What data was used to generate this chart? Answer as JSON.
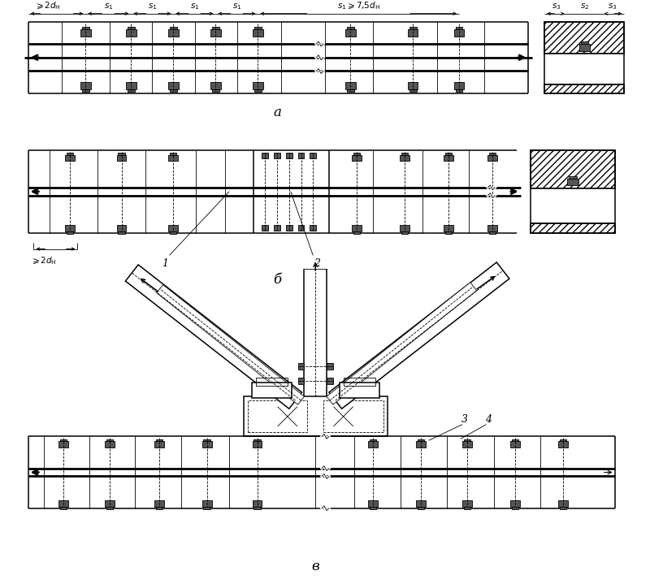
{
  "bg_color": "#ffffff",
  "line_color": "#000000",
  "label_a": "а",
  "label_b": "б",
  "label_v": "в",
  "num1": "1",
  "num2": "2",
  "num3": "3",
  "num4": "4",
  "figsize": [
    8.0,
    7.24
  ],
  "dpi": 100
}
